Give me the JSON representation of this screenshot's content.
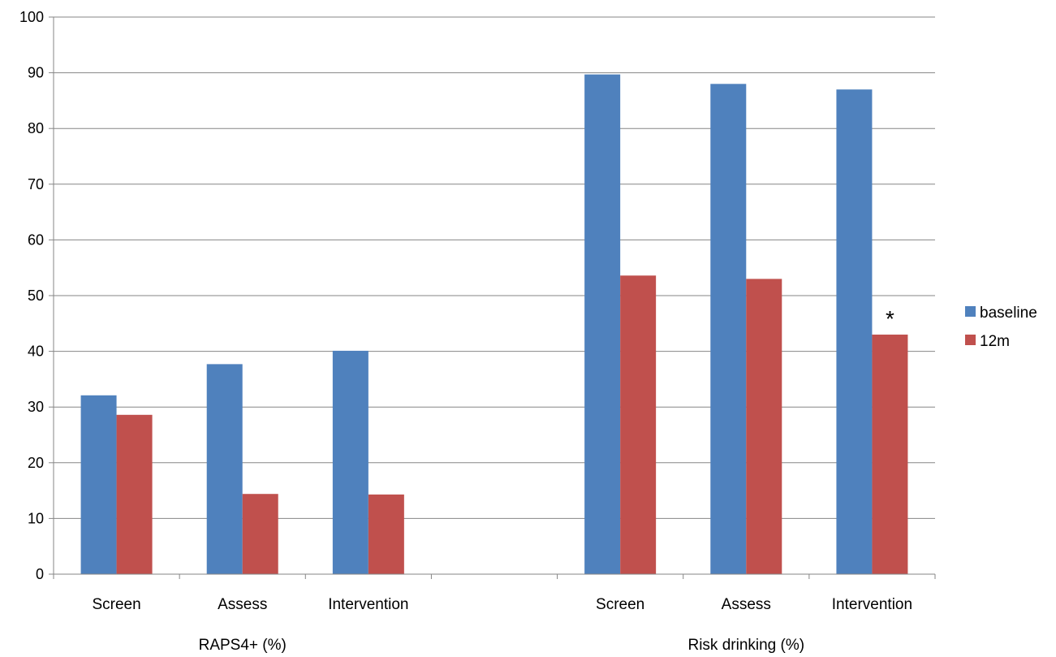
{
  "chart_data": {
    "type": "bar",
    "groups": [
      {
        "label": "RAPS4+ (%)",
        "categories": [
          "Screen",
          "Assess",
          "Intervention"
        ]
      },
      {
        "label": "Risk drinking (%)",
        "categories": [
          "Screen",
          "Assess",
          "Intervention"
        ]
      }
    ],
    "series": [
      {
        "name": "baseline",
        "color": "#4f81bd",
        "values": [
          [
            32.1,
            37.7,
            40.1
          ],
          [
            89.7,
            88.0,
            87.0
          ]
        ]
      },
      {
        "name": "12m",
        "color": "#c0504d",
        "values": [
          [
            28.6,
            14.4,
            14.3
          ],
          [
            53.6,
            53.0,
            43.0
          ]
        ]
      }
    ],
    "ylim": [
      0,
      100
    ],
    "ytick_step": 10,
    "grid": true,
    "legend_position": "right",
    "annotations": [
      {
        "text": "*",
        "group": 1,
        "category": 2,
        "series": 1
      }
    ]
  }
}
